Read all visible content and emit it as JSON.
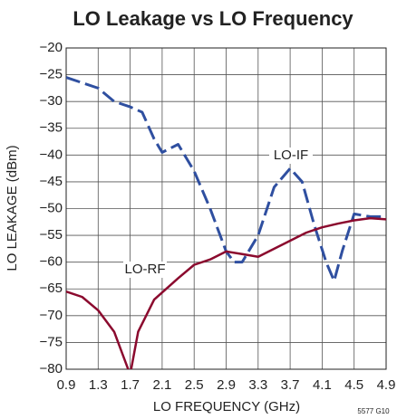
{
  "chart_data": {
    "type": "line",
    "title": "LO Leakage vs LO Frequency",
    "x_label": "LO FREQUENCY (GHz)",
    "y_label": "LO LEAKAGE (dBm)",
    "footnote": "5577 G10",
    "xlim": [
      0.9,
      4.9
    ],
    "xticks": [
      0.9,
      1.3,
      1.7,
      2.1,
      2.5,
      2.9,
      3.3,
      3.7,
      4.1,
      4.5,
      4.9
    ],
    "ylim": [
      -80,
      -20
    ],
    "yticks": [
      {
        "value": -20,
        "label": "−20"
      },
      {
        "value": -25,
        "label": "−25"
      },
      {
        "value": -30,
        "label": "−30"
      },
      {
        "value": -35,
        "label": "−35"
      },
      {
        "value": -40,
        "label": "−40"
      },
      {
        "value": -45,
        "label": "−45"
      },
      {
        "value": -50,
        "label": "−50"
      },
      {
        "value": -55,
        "label": "−55"
      },
      {
        "value": -60,
        "label": "−60"
      },
      {
        "value": -65,
        "label": "−65"
      },
      {
        "value": -70,
        "label": "−70"
      },
      {
        "value": -75,
        "label": "−75"
      },
      {
        "value": -80,
        "label": "−80"
      }
    ],
    "grid": true,
    "series": [
      {
        "name": "LO-IF",
        "color": "#2f4fa0",
        "dashed": true,
        "x": [
          0.9,
          1.1,
          1.3,
          1.5,
          1.7,
          1.85,
          2.0,
          2.1,
          2.3,
          2.5,
          2.7,
          2.9,
          3.0,
          3.1,
          3.3,
          3.5,
          3.7,
          3.85,
          4.0,
          4.15,
          4.25,
          4.35,
          4.5,
          4.7,
          4.9
        ],
        "values": [
          -25.5,
          -26.5,
          -27.5,
          -30,
          -31,
          -32,
          -37,
          -39.5,
          -38,
          -43,
          -50,
          -58,
          -60,
          -60,
          -55,
          -46,
          -42.5,
          -45,
          -53,
          -60,
          -63.5,
          -58,
          -51,
          -51.5,
          -51.5
        ]
      },
      {
        "name": "LO-RF",
        "color": "#8b0a2e",
        "dashed": false,
        "x": [
          0.9,
          1.1,
          1.3,
          1.5,
          1.6,
          1.7,
          1.8,
          2.0,
          2.3,
          2.5,
          2.7,
          2.9,
          3.1,
          3.3,
          3.5,
          3.7,
          3.9,
          4.1,
          4.3,
          4.5,
          4.7,
          4.9
        ],
        "values": [
          -65.5,
          -66.5,
          -69,
          -73,
          -77,
          -81,
          -73,
          -67,
          -63,
          -60.5,
          -59.5,
          -58,
          -58.5,
          -59,
          -57.5,
          -56,
          -54.5,
          -53.5,
          -52.8,
          -52.2,
          -51.8,
          -52
        ]
      }
    ]
  }
}
